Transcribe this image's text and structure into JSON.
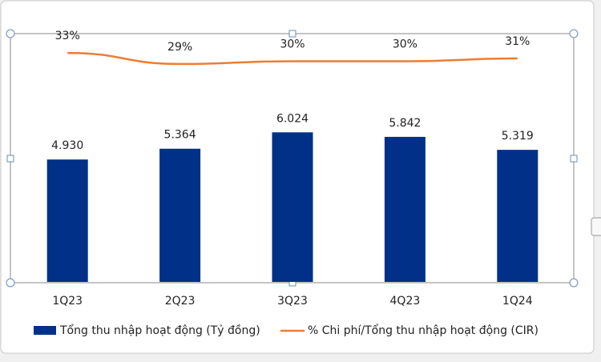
{
  "chart_data": {
    "type": "combo",
    "categories": [
      "1Q23",
      "2Q23",
      "3Q23",
      "4Q23",
      "1Q24"
    ],
    "ylim": [
      0,
      10000
    ],
    "y2lim": [
      -50,
      40
    ],
    "legend": "bottom",
    "series": [
      {
        "name": "Tổng thu nhập hoạt động (Tỷ đồng)",
        "type": "bar",
        "color": "#003087",
        "values": [
          4930,
          5364,
          6024,
          5842,
          5319
        ],
        "value_labels": [
          "4.930",
          "5.364",
          "6.024",
          "5.842",
          "5.319"
        ]
      },
      {
        "name": "% Chi phí/Tổng thu nhập hoạt động (CIR)",
        "type": "line",
        "axis": "y2",
        "color": "#ed7d31",
        "values": [
          33,
          29,
          30,
          30,
          31
        ],
        "value_labels": [
          "33%",
          "29%",
          "30%",
          "30%",
          "31%"
        ]
      }
    ]
  }
}
